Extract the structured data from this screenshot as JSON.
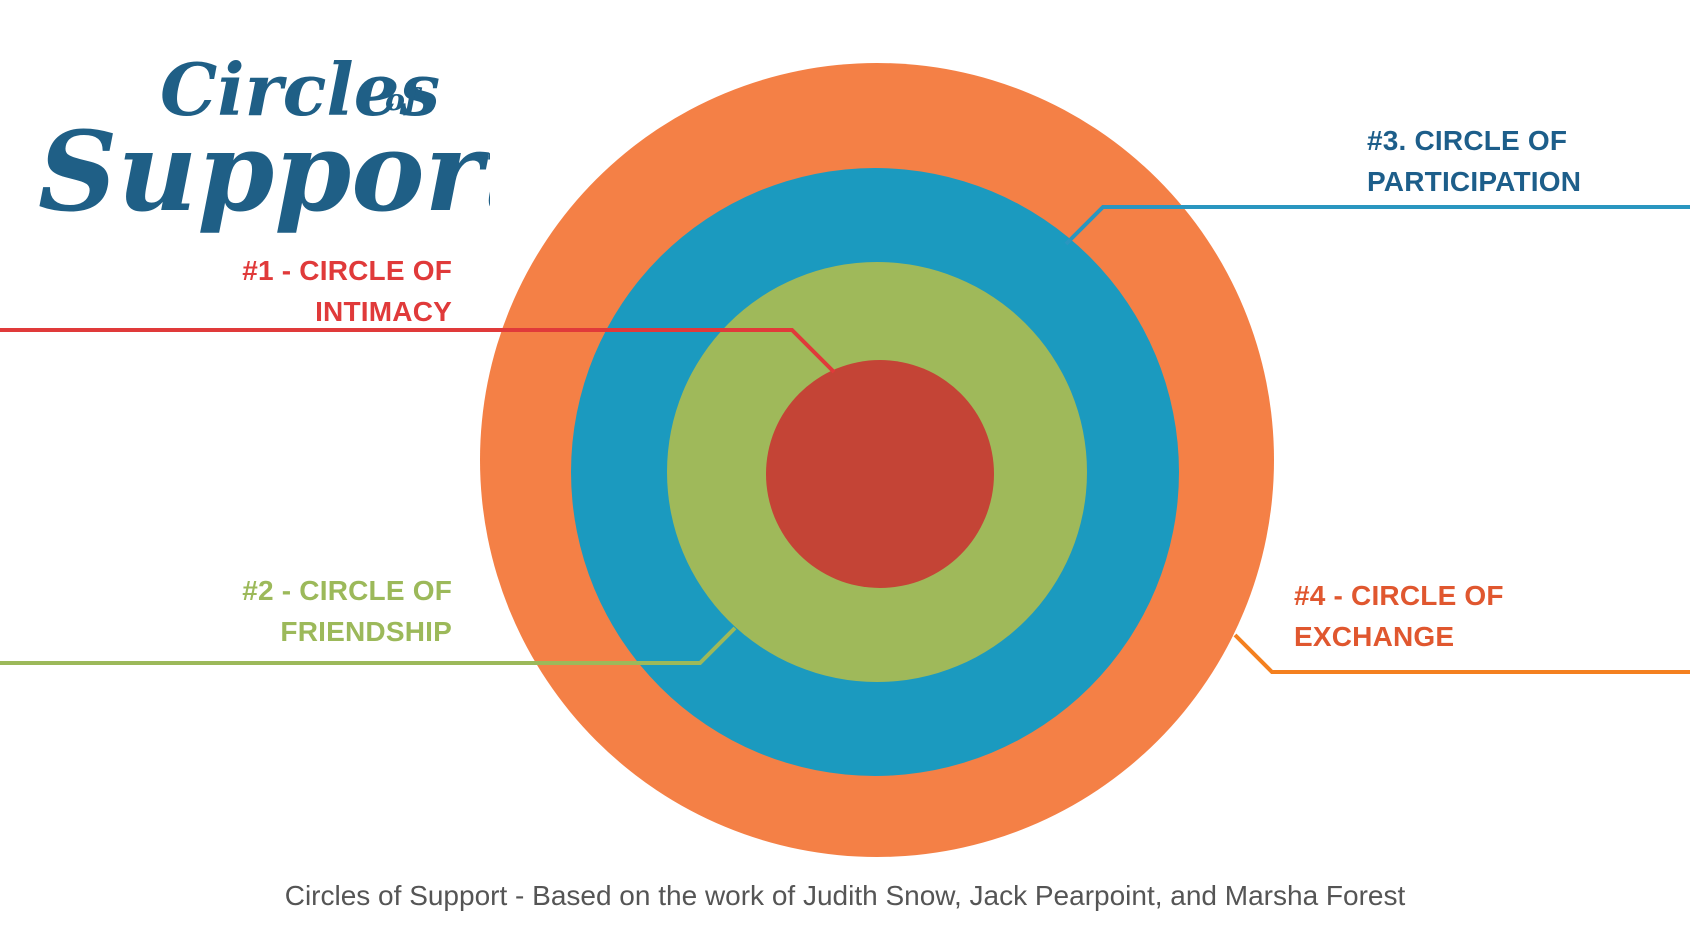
{
  "logo": {
    "word_circles": "Circles",
    "word_of": "of",
    "word_support": "Support"
  },
  "colors": {
    "outer": "#f48046",
    "third": "#1b9abf",
    "second": "#9fb95a",
    "inner": "#c44436",
    "line_intimacy": "#e03a3a",
    "line_friendship": "#9cb95a",
    "line_participation": "#2a96c0",
    "line_exchange": "#f4801f"
  },
  "circles": [
    {
      "id": "intimacy",
      "number": "#1",
      "line1": "#1 - CIRCLE OF",
      "line2": "INTIMACY"
    },
    {
      "id": "friendship",
      "number": "#2",
      "line1": "#2 - CIRCLE OF",
      "line2": "FRIENDSHIP"
    },
    {
      "id": "participation",
      "number": "#3",
      "line1": "#3. CIRCLE OF",
      "line2": "PARTICIPATION"
    },
    {
      "id": "exchange",
      "number": "#4",
      "line1": "#4 - CIRCLE OF",
      "line2": "EXCHANGE"
    }
  ],
  "caption": "Circles of Support - Based on the work of Judith Snow, Jack Pearpoint, and Marsha Forest"
}
